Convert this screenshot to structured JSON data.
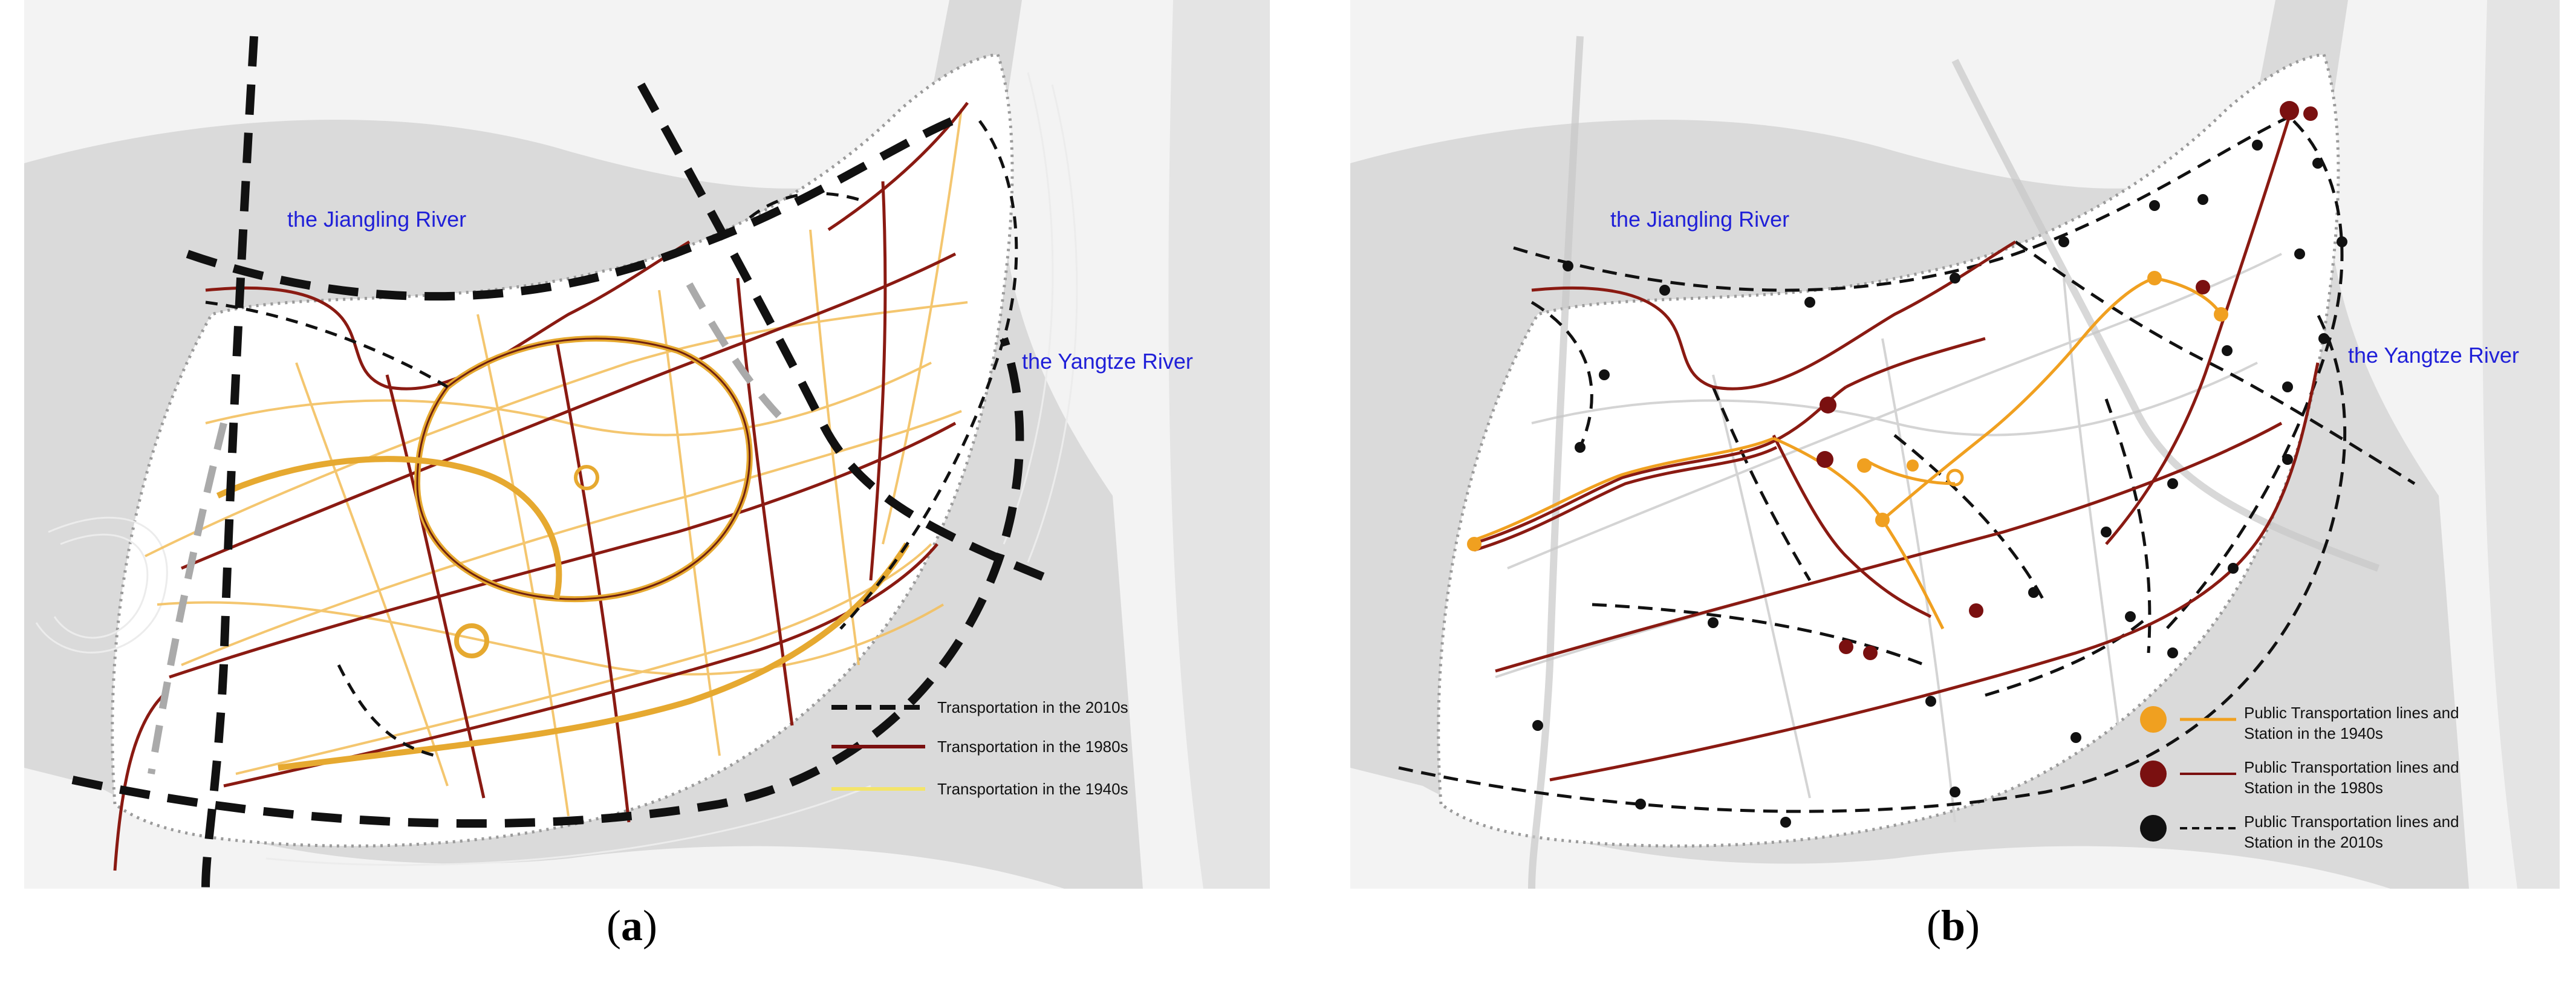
{
  "panels": [
    {
      "caption_letter": "a",
      "rivers": {
        "north": "the Jiangling River",
        "east": "the Yangtze River"
      },
      "legend": [
        {
          "label": "Transportation in the 2010s",
          "style": "dashed",
          "color": "#111111"
        },
        {
          "label": "Transportation in the 1980s",
          "style": "solid",
          "color": "#7a1010"
        },
        {
          "label": "Transportation in the 1940s",
          "style": "solid",
          "color": "#f3e46a"
        }
      ]
    },
    {
      "caption_letter": "b",
      "rivers": {
        "north": "the Jiangling River",
        "east": "the Yangtze River"
      },
      "legend": [
        {
          "label_line1": "Public Transportation lines and",
          "label_line2": "Station in the 1940s",
          "color": "#f0a020",
          "style": "solid"
        },
        {
          "label_line1": "Public Transportation lines and",
          "label_line2": "Station in the 1980s",
          "color": "#7a1010",
          "style": "solid"
        },
        {
          "label_line1": "Public Transportation lines and",
          "label_line2": "Station in the 2010s",
          "color": "#111111",
          "style": "dashed"
        }
      ]
    }
  ],
  "colors": {
    "water": "#dcdcdc",
    "land": "#ffffff",
    "background_land": "#f2f2f2",
    "lines_2010s": "#111111",
    "lines_1980s": "#7a1010",
    "lines_1940s": "#f0a020"
  }
}
